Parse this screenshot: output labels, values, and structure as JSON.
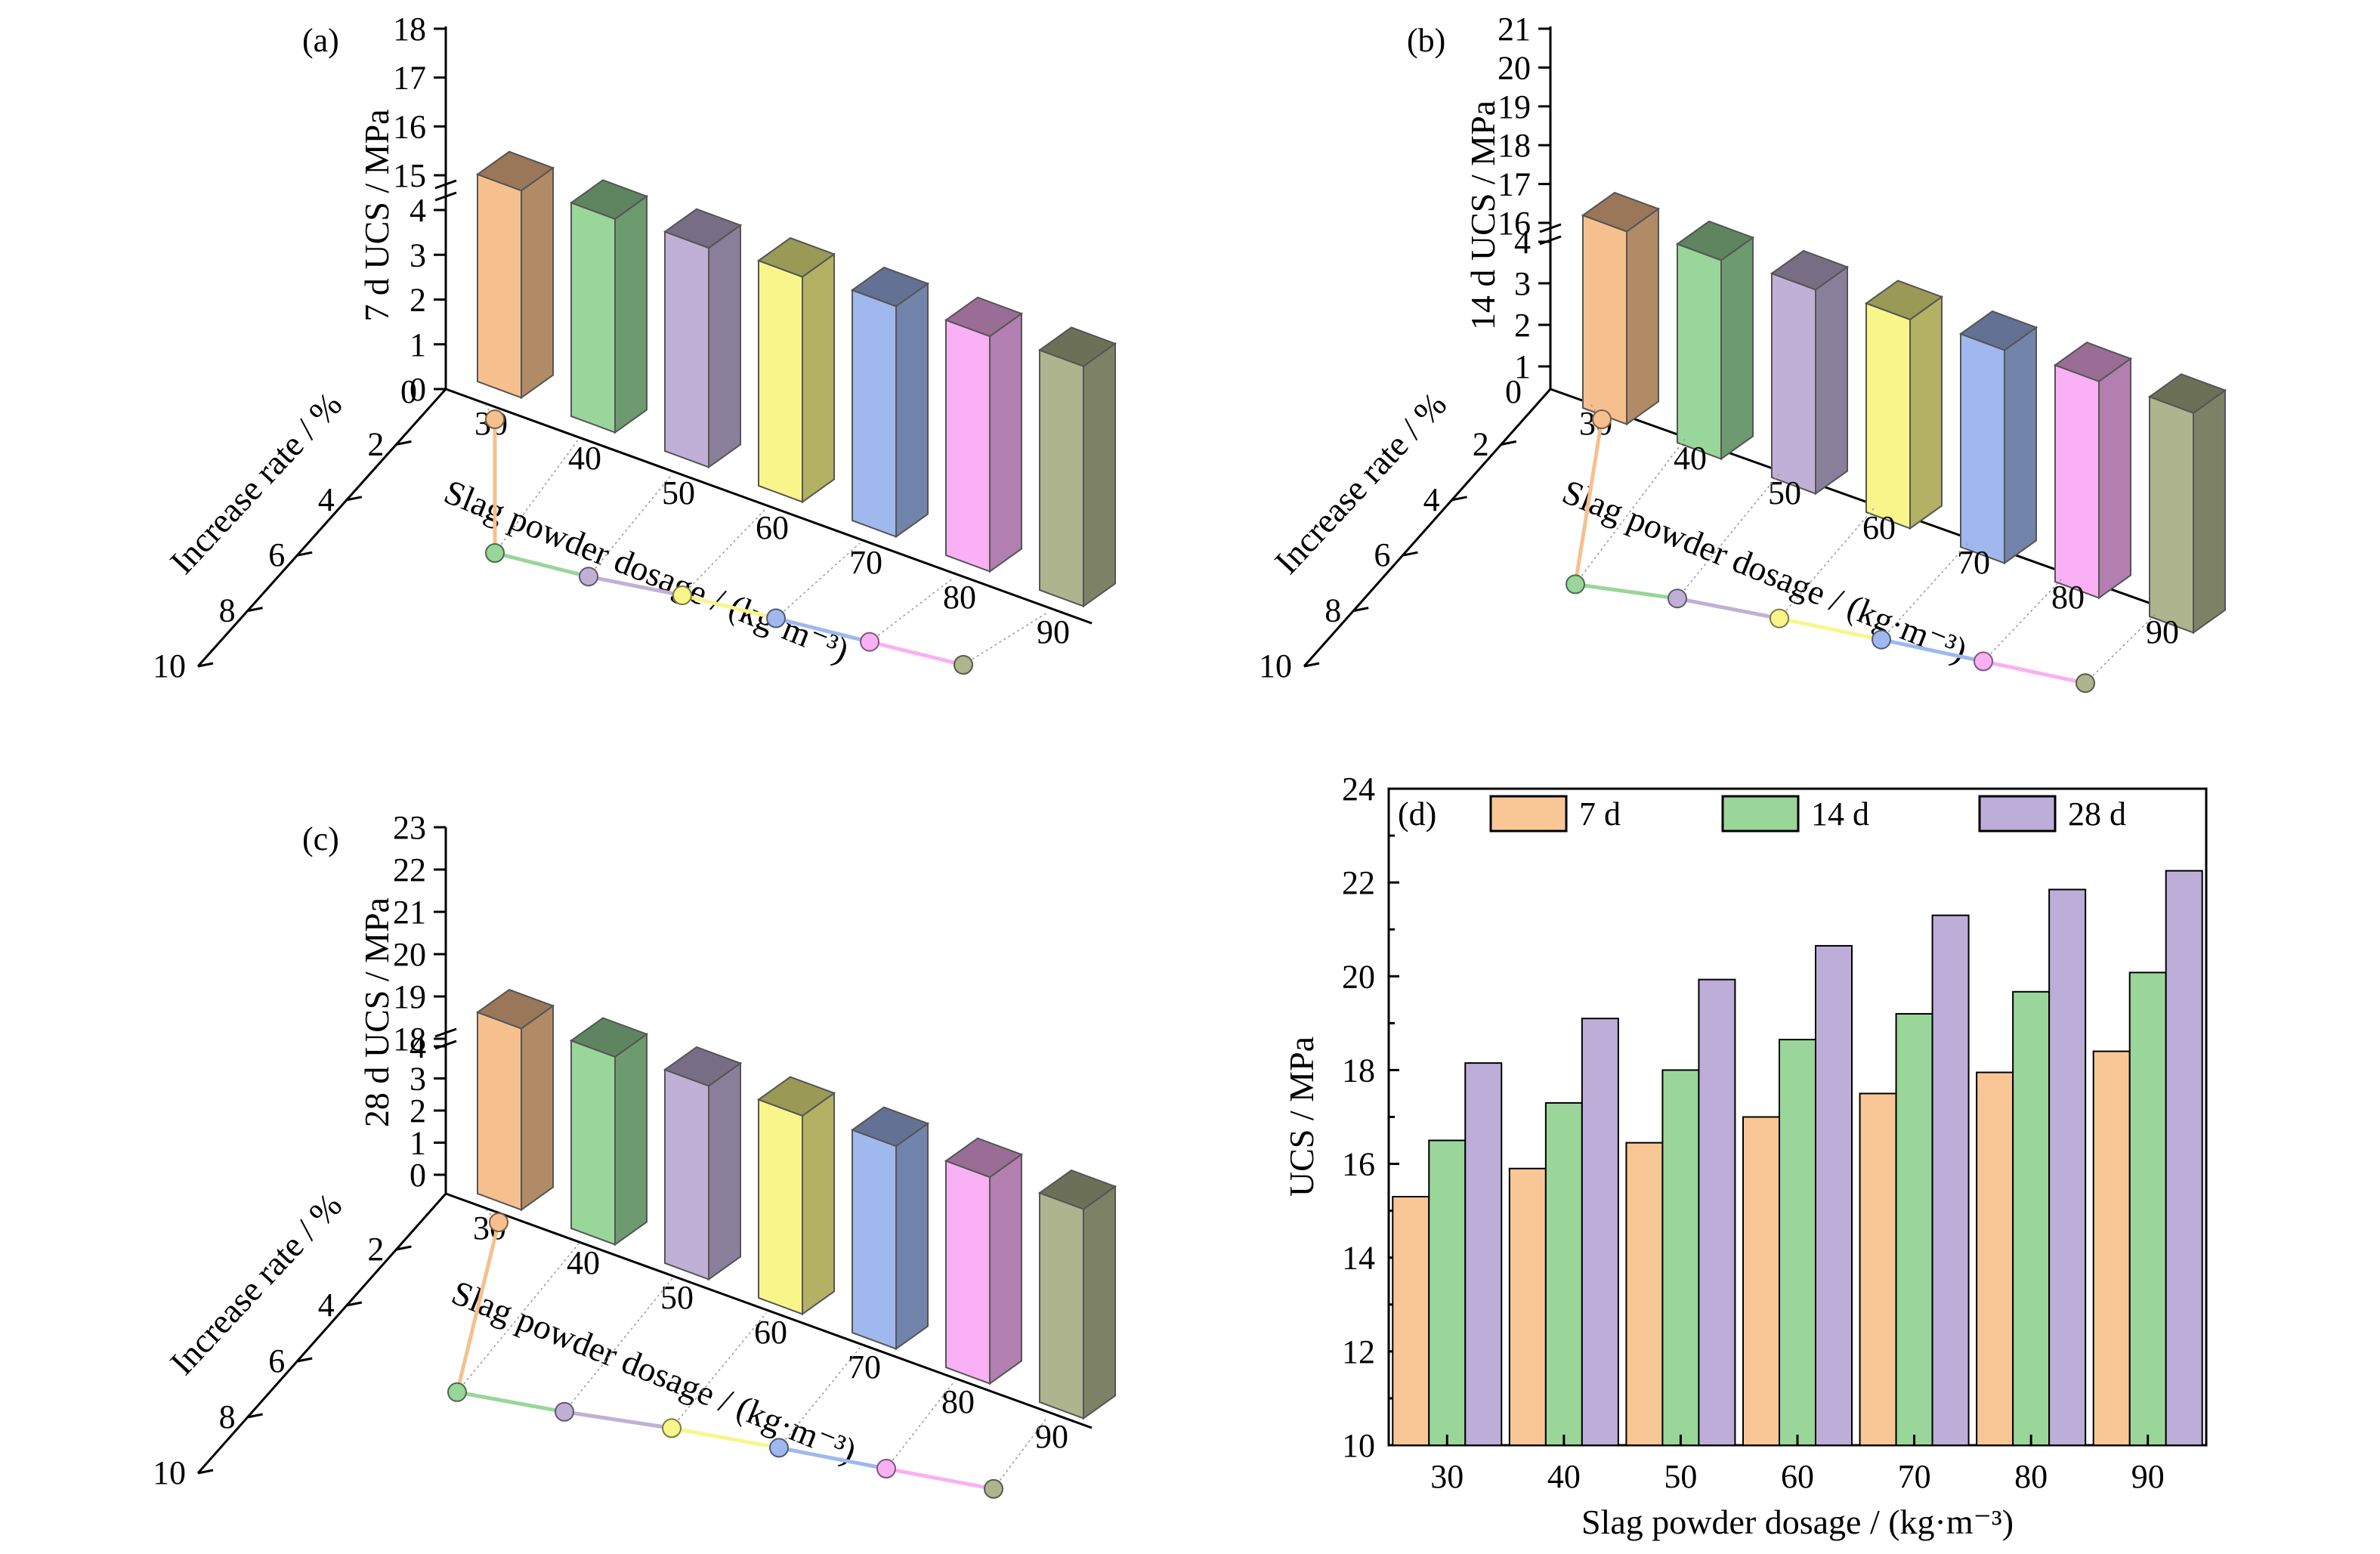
{
  "colors": {
    "slag": [
      "#f6c08e",
      "#98d699",
      "#c0b0d6",
      "#f8f68a",
      "#9fb8ee",
      "#f9b0f4",
      "#aeb48d"
    ],
    "ages": [
      "#f9c795",
      "#9ad69a",
      "#bcaed8"
    ]
  },
  "chart_data": [
    {
      "id": "a",
      "type": "bar3d",
      "panel_label": "(a)",
      "categories": [
        "30",
        "40",
        "50",
        "60",
        "70",
        "80",
        "90"
      ],
      "values": [
        15.3,
        15.9,
        16.45,
        17.0,
        17.5,
        17.95,
        18.4
      ],
      "ucs_ticks": [
        "15",
        "16",
        "17",
        "18"
      ],
      "ucs_axis_label": "7 d UCS / MPa",
      "rate_ticks": [
        "0",
        "1",
        "2",
        "3",
        "4"
      ],
      "depth_axis_label": "Increase rate / %",
      "depth_ticks": [
        "2",
        "4",
        "6",
        "8",
        "10"
      ],
      "depth_zero": "0",
      "xlabel": "Slag powder dosage / (kg·m⁻³)",
      "increase_rate": [
        8.3,
        6.5,
        6.8,
        5.5,
        5.6,
        5.9,
        6.0
      ]
    },
    {
      "id": "b",
      "type": "bar3d",
      "panel_label": "(b)",
      "categories": [
        "30",
        "40",
        "50",
        "60",
        "70",
        "80",
        "90"
      ],
      "values": [
        16.5,
        17.3,
        18.0,
        18.65,
        19.2,
        19.67,
        20.08
      ],
      "ucs_ticks": [
        "16",
        "17",
        "18",
        "19",
        "20",
        "21"
      ],
      "ucs_axis_label": "14 d UCS / MPa",
      "rate_ticks": [
        "1",
        "2",
        "3",
        "4"
      ],
      "depth_axis_label": "Increase rate / %",
      "depth_ticks": [
        "2",
        "4",
        "6",
        "8",
        "10"
      ],
      "depth_zero": "0",
      "xlabel": "Slag powder dosage / (kg·m⁻³)",
      "increase_rate": [
        8.1,
        8.1,
        5.8,
        5.4,
        5.4,
        5.6,
        5.8
      ]
    },
    {
      "id": "c",
      "type": "bar3d",
      "panel_label": "(c)",
      "categories": [
        "30",
        "40",
        "50",
        "60",
        "70",
        "80",
        "90"
      ],
      "values": [
        18.15,
        19.1,
        19.93,
        20.65,
        21.3,
        21.85,
        22.25
      ],
      "ucs_ticks": [
        "18",
        "19",
        "20",
        "21",
        "22",
        "23"
      ],
      "ucs_axis_label": "28 d UCS / MPa",
      "rate_ticks": [
        "0",
        "1",
        "2",
        "3",
        "4"
      ],
      "depth_axis_label": "Increase rate / %",
      "depth_ticks": [
        "2",
        "4",
        "6",
        "8",
        "10"
      ],
      "depth_zero": "",
      "xlabel": "Slag powder dosage / (kg·m⁻³)",
      "increase_rate": [
        8.3,
        6.7,
        6.7,
        5.6,
        5.6,
        6.0,
        6.2
      ]
    },
    {
      "id": "d",
      "type": "bar",
      "panel_label": "(d)",
      "categories": [
        "30",
        "40",
        "50",
        "60",
        "70",
        "80",
        "90"
      ],
      "series": [
        {
          "name": "7 d",
          "values": [
            15.3,
            15.9,
            16.45,
            17.0,
            17.5,
            17.95,
            18.4
          ]
        },
        {
          "name": "14 d",
          "values": [
            16.5,
            17.3,
            18.0,
            18.65,
            19.2,
            19.67,
            20.08
          ]
        },
        {
          "name": "28 d",
          "values": [
            18.15,
            19.1,
            19.93,
            20.65,
            21.3,
            21.85,
            22.25
          ]
        }
      ],
      "ylim": [
        10,
        24
      ],
      "yticks": [
        10,
        12,
        14,
        16,
        18,
        20,
        22,
        24
      ],
      "xlabel": "Slag powder dosage / (kg·m⁻³)",
      "ylabel": "UCS / MPa",
      "legend": "top"
    }
  ]
}
